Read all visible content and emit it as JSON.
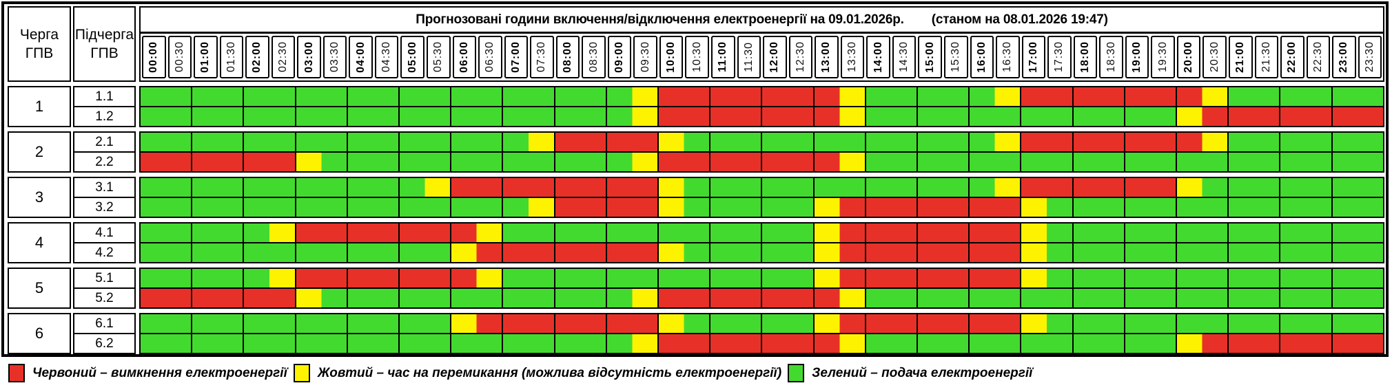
{
  "title": {
    "main": "Прогнозовані години включення/відключення електроенергії на 09.01.2026р.",
    "asof": "(станом на 08.01.2026 19:47)"
  },
  "header": {
    "queue_col": "Черга\nГПВ",
    "subqueue_col": "Підчерга\nГПВ"
  },
  "times": [
    "00:00",
    "00:30",
    "01:00",
    "01:30",
    "02:00",
    "02:30",
    "03:00",
    "03:30",
    "04:00",
    "04:30",
    "05:00",
    "05:30",
    "06:00",
    "06:30",
    "07:00",
    "07:30",
    "08:00",
    "08:30",
    "09:00",
    "09:30",
    "10:00",
    "10:30",
    "11:00",
    "11:30",
    "12:00",
    "12:30",
    "13:00",
    "13:30",
    "14:00",
    "14:30",
    "15:00",
    "15:30",
    "16:00",
    "16:30",
    "17:00",
    "17:30",
    "18:00",
    "18:30",
    "19:00",
    "19:30",
    "20:00",
    "20:30",
    "21:00",
    "21:30",
    "22:00",
    "22:30",
    "23:00",
    "23:30"
  ],
  "colors": {
    "G": "#43da2f",
    "Y": "#fdf300",
    "R": "#e73128"
  },
  "groups": [
    {
      "queue": "1",
      "rows": [
        {
          "label": "1.1",
          "pattern": "GGGGGGGGGGGGGGGGGGGYRRRRRRRYGGGGGYRRRRRRRYGGGGGG"
        },
        {
          "label": "1.2",
          "pattern": "GGGGGGGGGGGGGGGGGGGYRRRRRRRYGGGGGGGGGGGGYRRRRRRR"
        }
      ]
    },
    {
      "queue": "2",
      "rows": [
        {
          "label": "2.1",
          "pattern": "GGGGGGGGGGGGGGGYRRRRYGGGGGGGGGGGGYRRRRRRRYGGGGGG"
        },
        {
          "label": "2.2",
          "pattern": "RRRRRRYGGGGGGGGGGGGYRRRRRRRYGGGGGGGGGGGGGGGGGGGG"
        }
      ]
    },
    {
      "queue": "3",
      "rows": [
        {
          "label": "3.1",
          "pattern": "GGGGGGGGGGGYRRRRRRRRYGGGGGGGGGGGGYRRRRRRYGGGGGGG"
        },
        {
          "label": "3.2",
          "pattern": "GGGGGGGGGGGGGGGYRRRRYGGGGGYRRRRRRRYGGGGGGGGGGGGG"
        }
      ]
    },
    {
      "queue": "4",
      "rows": [
        {
          "label": "4.1",
          "pattern": "GGGGGYRRRRRRRYGGGGGGGGGGGGYRRRRRRRYGGGGGGGGGGGGG"
        },
        {
          "label": "4.2",
          "pattern": "GGGGGGGGGGGGYRRRRRRRYGGGGGYRRRRRRRYGGGGGGGGGGGGG"
        }
      ]
    },
    {
      "queue": "5",
      "rows": [
        {
          "label": "5.1",
          "pattern": "GGGGGYRRRRRRRYGGGGGGGGGGGGYRRRRRRRYGGGGGGGGGGGGG"
        },
        {
          "label": "5.2",
          "pattern": "RRRRRRYGGGGGGGGGGGGYRRRRRRRYGGGGGGGGGGGGGGGGGGGG"
        }
      ]
    },
    {
      "queue": "6",
      "rows": [
        {
          "label": "6.1",
          "pattern": "GGGGGGGGGGGGYRRRRRRRYGGGGGYRRRRRRRYGGGGGGGGGGGGG"
        },
        {
          "label": "6.2",
          "pattern": "GGGGGGGGGGGGGGGGGGGYRRRRRRRYGGGGGGGGGGGGYRRRRRRR"
        }
      ]
    }
  ],
  "legend": [
    {
      "key": "R",
      "label": "Червоний – вимкнення електроенергії"
    },
    {
      "key": "Y",
      "label": "Жовтий – час на перемикання (можлива відсутність електроенергії)"
    },
    {
      "key": "G",
      "label": "Зелений – подача електроенергії"
    }
  ]
}
